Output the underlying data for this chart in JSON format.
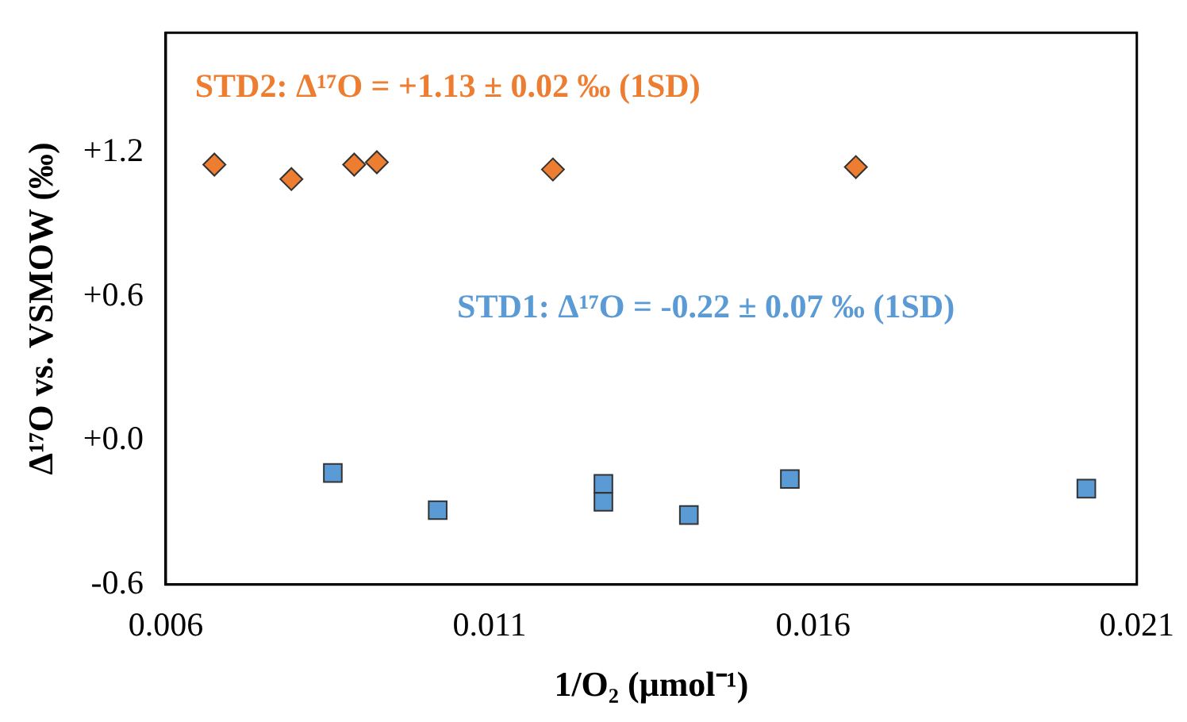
{
  "chart_data": {
    "type": "scatter",
    "xlabel": "1/O₂ (μmol⁻¹)",
    "ylabel": "Δ¹⁷O vs. VSMOW (‰)",
    "xlim": [
      0.006,
      0.021
    ],
    "xticks": [
      0.006,
      0.011,
      0.016,
      0.021
    ],
    "ylim": [
      -0.6,
      1.7
    ],
    "yticks": [
      {
        "value": -0.6,
        "label": "-0.6"
      },
      {
        "value": 0,
        "label": "+0.0"
      },
      {
        "value": 0.6,
        "label": "+0.6"
      },
      {
        "value": 1.2,
        "label": "+1.2"
      }
    ],
    "grid": false,
    "legend": false,
    "annotations": [
      "STD2: Δ¹⁷O = +1.13 ± 0.02 ‰ (1SD)",
      "STD1: Δ¹⁷O = -0.22 ± 0.07 ‰ (1SD)"
    ],
    "series": [
      {
        "color": "#ed7d31",
        "marker": "diamond",
        "x": [
          0.00675,
          0.00794,
          0.00891,
          0.00926,
          0.01198,
          0.01666
        ],
        "values": [
          1.15,
          1.09,
          1.15,
          1.16,
          1.13,
          1.14
        ]
      },
      {
        "color": "#5b9bd5",
        "marker": "square",
        "x": [
          0.00858,
          0.0102,
          0.01276,
          0.01276,
          0.01408,
          0.01564,
          0.02022
        ],
        "values": [
          -0.135,
          -0.29,
          -0.18,
          -0.255,
          -0.31,
          -0.16,
          -0.2
        ]
      }
    ]
  }
}
